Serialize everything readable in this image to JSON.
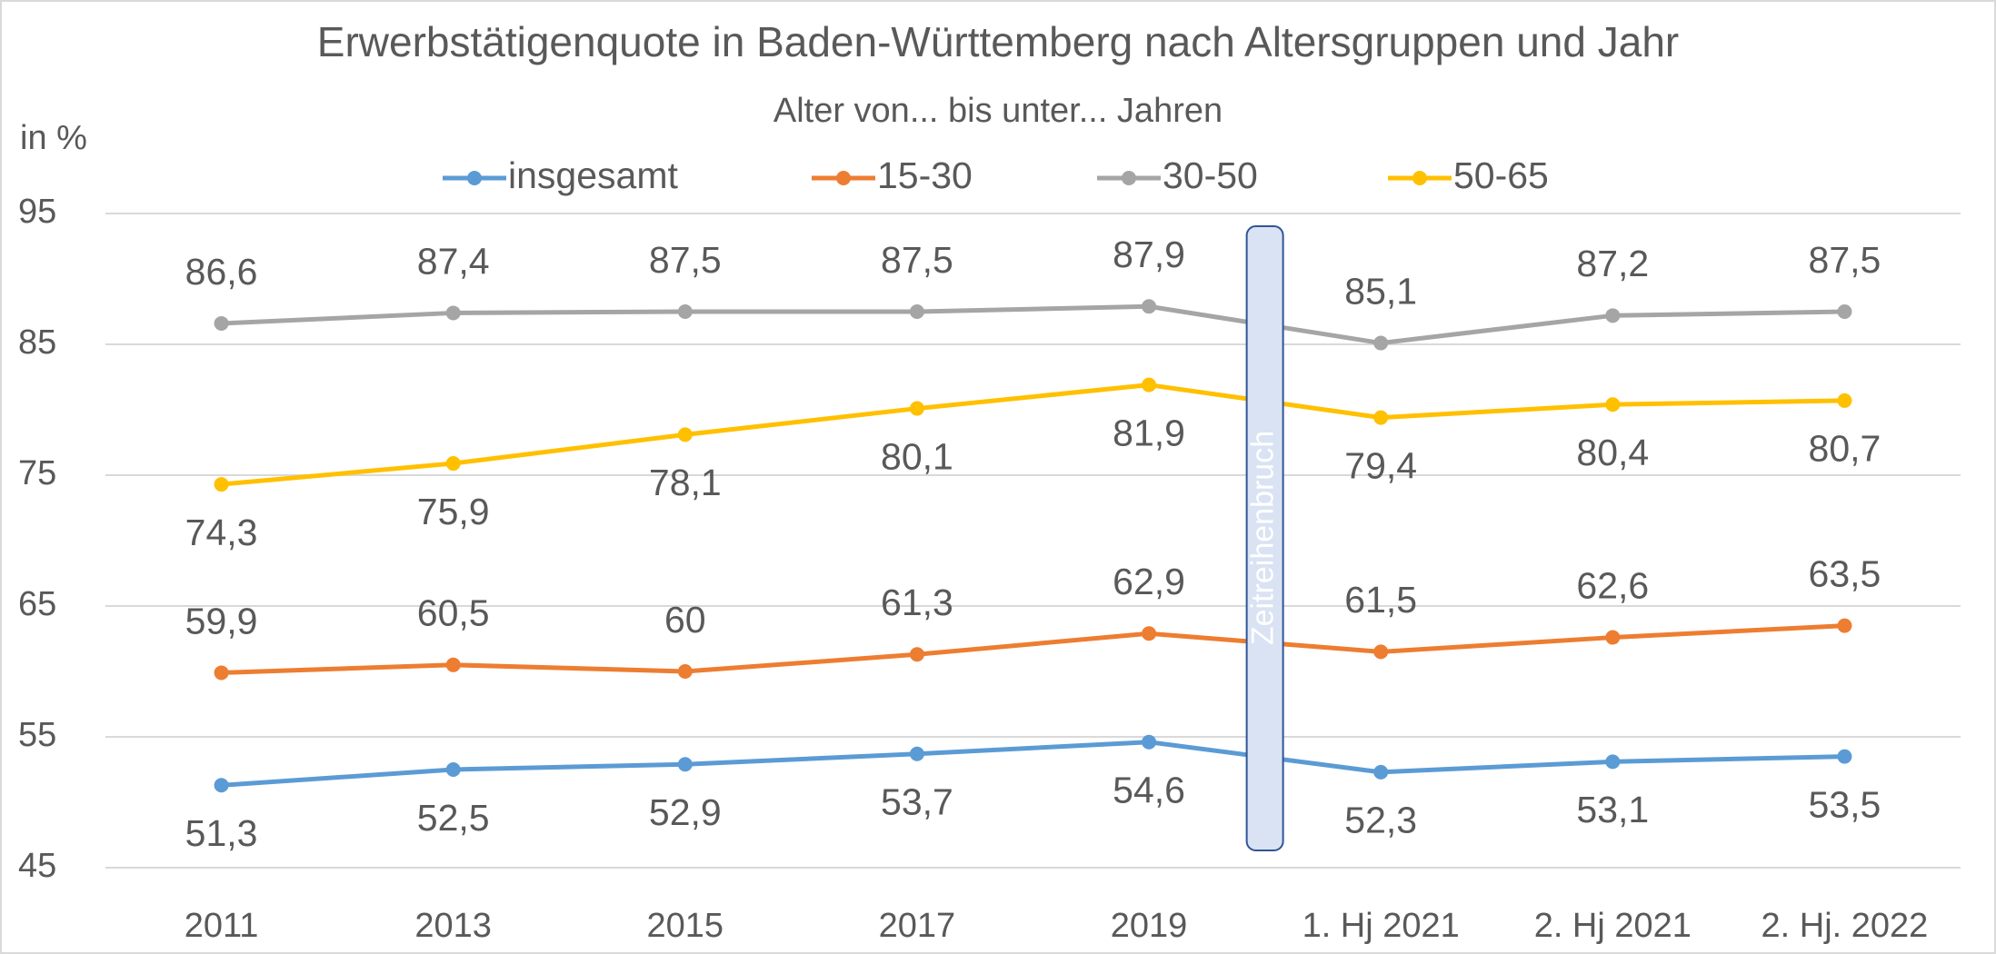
{
  "chart_data": {
    "type": "line",
    "title": "Erwerbstätigenquote in Baden-Württemberg nach Altersgruppen und Jahr",
    "subtitle": "Alter von... bis unter... Jahren",
    "y_label": "in %",
    "annotation": "Zeitreihenbruch",
    "categories": [
      "2011",
      "2013",
      "2015",
      "2017",
      "2019",
      "1. Hj 2021",
      "2. Hj 2021",
      "2. Hj. 2022"
    ],
    "series": [
      {
        "name": "insgesamt",
        "color": "#5b9bd5",
        "values": [
          51.3,
          52.5,
          52.9,
          53.7,
          54.6,
          52.3,
          53.1,
          53.5
        ],
        "value_labels": [
          "51,3",
          "52,5",
          "52,9",
          "53,7",
          "54,6",
          "52,3",
          "53,1",
          "53,5"
        ]
      },
      {
        "name": "15-30",
        "color": "#ed7d31",
        "values": [
          59.9,
          60.5,
          60,
          61.3,
          62.9,
          61.5,
          62.6,
          63.5
        ],
        "value_labels": [
          "59,9",
          "60,5",
          "60",
          "61,3",
          "62,9",
          "61,5",
          "62,6",
          "63,5"
        ]
      },
      {
        "name": "30-50",
        "color": "#a5a5a5",
        "values": [
          86.6,
          87.4,
          87.5,
          87.5,
          87.9,
          85.1,
          87.2,
          87.5
        ],
        "value_labels": [
          "86,6",
          "87,4",
          "87,5",
          "87,5",
          "87,9",
          "85,1",
          "87,2",
          "87,5"
        ]
      },
      {
        "name": "50-65",
        "color": "#ffc000",
        "values": [
          74.3,
          75.9,
          78.1,
          80.1,
          81.9,
          79.4,
          80.4,
          80.7
        ],
        "value_labels": [
          "74,3",
          "75,9",
          "78,1",
          "80,1",
          "81,9",
          "79,4",
          "80,4",
          "80,7"
        ]
      }
    ],
    "ylim": [
      45,
      95
    ],
    "yticks": [
      45,
      55,
      65,
      75,
      85,
      95
    ],
    "grid": true,
    "legend": "top"
  }
}
